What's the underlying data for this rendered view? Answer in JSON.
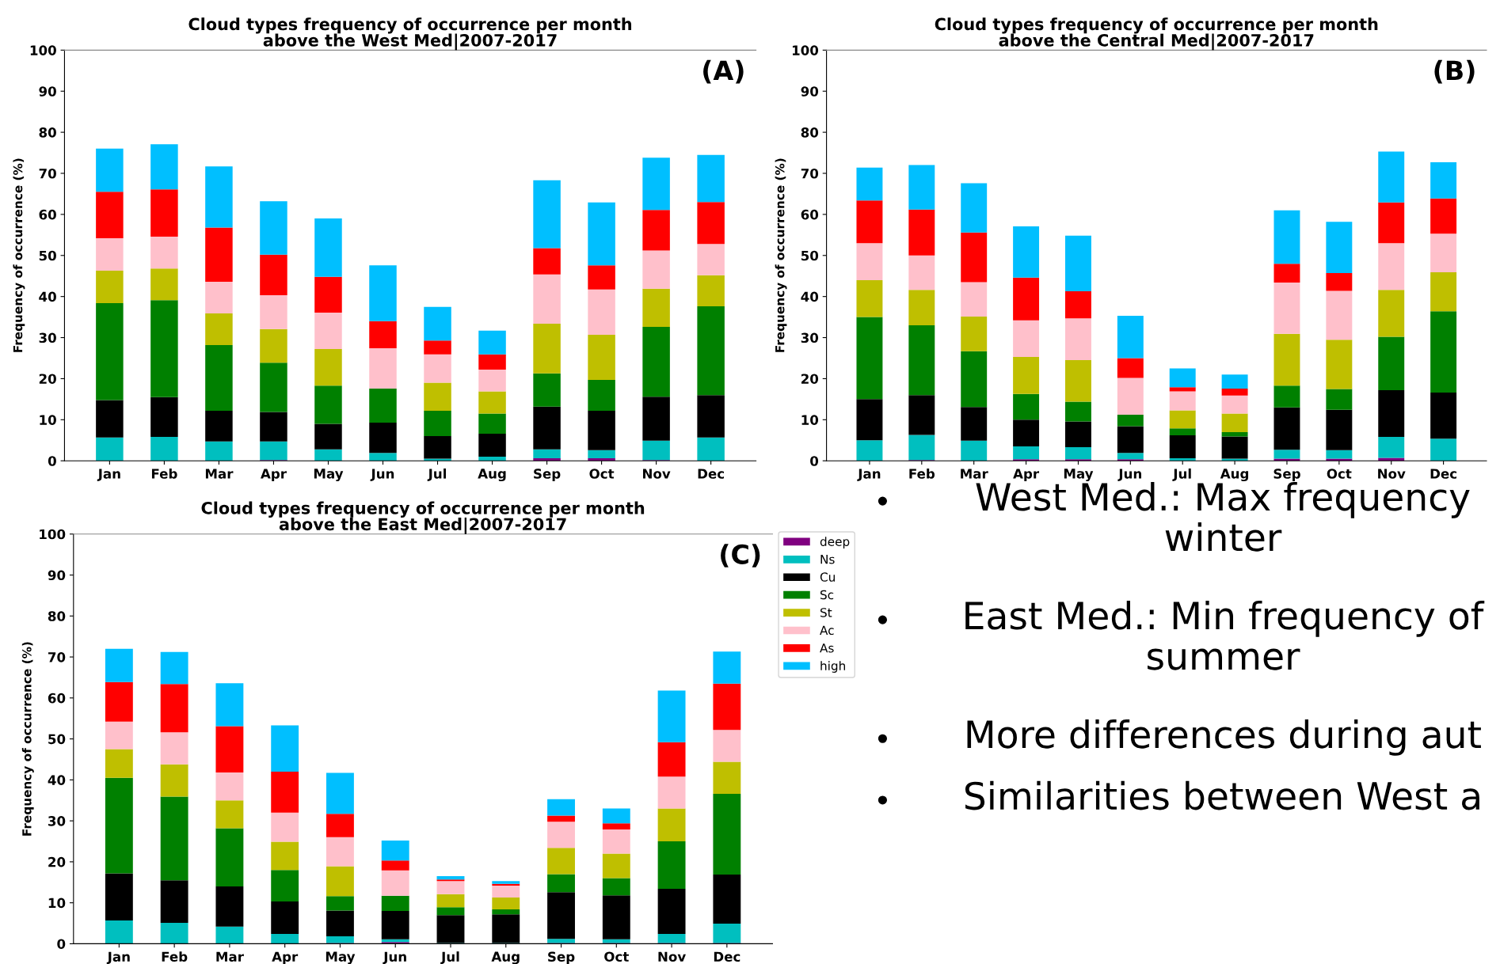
{
  "chart_data": [
    {
      "type": "bar",
      "stacked": true,
      "title": "Cloud types frequency of occurrence per month\nabove the West Med|2007-2017",
      "ylabel": "Frequency of occurrence (%)",
      "annotations": [
        "(A)"
      ],
      "categories": [
        "Jan",
        "Feb",
        "Mar",
        "Apr",
        "May",
        "Jun",
        "Jul",
        "Aug",
        "Sep",
        "Oct",
        "Nov",
        "Dec"
      ],
      "ylim": [
        0,
        100
      ],
      "yticks": [
        0,
        10,
        20,
        30,
        40,
        50,
        60,
        70,
        80,
        90,
        100
      ],
      "series": [
        {
          "color": "#800080",
          "values": [
            0,
            0,
            0,
            0.2,
            0,
            0,
            0,
            0,
            0.6,
            0.6,
            0.2,
            0
          ]
        },
        {
          "color": "#00bfbf",
          "values": [
            5.7,
            5.8,
            4.7,
            4.5,
            2.8,
            1.9,
            0.5,
            1.0,
            2.2,
            2.0,
            4.7,
            5.7
          ]
        },
        {
          "color": "#000000",
          "values": [
            9.1,
            9.7,
            7.5,
            7.2,
            6.2,
            7.4,
            5.5,
            5.6,
            10.4,
            9.6,
            10.7,
            10.3
          ]
        },
        {
          "color": "#008000",
          "values": [
            23.6,
            23.6,
            16.0,
            12.0,
            9.3,
            8.3,
            6.2,
            4.9,
            8.1,
            7.5,
            17.0,
            21.6
          ]
        },
        {
          "color": "#bfbf00",
          "values": [
            7.9,
            7.7,
            7.7,
            8.2,
            8.9,
            0,
            6.8,
            5.4,
            12.1,
            11.0,
            9.3,
            7.6
          ]
        },
        {
          "color": "#ffc0cb",
          "values": [
            7.9,
            7.8,
            7.7,
            8.2,
            8.9,
            9.8,
            6.9,
            5.3,
            12.0,
            11.0,
            9.3,
            7.6
          ]
        },
        {
          "color": "#ff0000",
          "values": [
            11.3,
            11.5,
            13.2,
            9.9,
            8.7,
            6.6,
            3.4,
            3.7,
            6.4,
            5.9,
            9.9,
            10.2
          ]
        },
        {
          "color": "#00bfff",
          "values": [
            10.5,
            11.0,
            14.9,
            13.0,
            14.2,
            13.6,
            8.2,
            5.8,
            16.5,
            15.3,
            12.7,
            11.5
          ]
        }
      ]
    },
    {
      "type": "bar",
      "stacked": true,
      "title": "Cloud types frequency of occurrence per month\nabove the Central Med|2007-2017",
      "ylabel": "Frequency of occurrence (%)",
      "annotations": [
        "(B)"
      ],
      "categories": [
        "Jan",
        "Feb",
        "Mar",
        "Apr",
        "May",
        "Jun",
        "Jul",
        "Aug",
        "Sep",
        "Oct",
        "Nov",
        "Dec"
      ],
      "ylim": [
        0,
        100
      ],
      "yticks": [
        0,
        10,
        20,
        30,
        40,
        50,
        60,
        70,
        80,
        90,
        100
      ],
      "series": [
        {
          "color": "#800080",
          "values": [
            0,
            0.2,
            0,
            0.4,
            0.4,
            0.4,
            0,
            0,
            0.5,
            0.5,
            0.7,
            0
          ]
        },
        {
          "color": "#00bfbf",
          "values": [
            5.0,
            6.1,
            4.9,
            3.1,
            2.9,
            1.5,
            0.6,
            0.5,
            2.2,
            2.1,
            5.1,
            5.4
          ]
        },
        {
          "color": "#000000",
          "values": [
            10.0,
            9.7,
            8.2,
            6.5,
            6.3,
            6.5,
            5.6,
            5.4,
            10.3,
            9.8,
            11.4,
            11.2
          ]
        },
        {
          "color": "#008000",
          "values": [
            20.0,
            17.0,
            13.6,
            6.3,
            4.8,
            2.8,
            1.7,
            1.1,
            5.3,
            5.1,
            13.0,
            19.8
          ]
        },
        {
          "color": "#bfbf00",
          "values": [
            9.0,
            8.6,
            8.4,
            9.0,
            10.1,
            0,
            4.4,
            4.5,
            12.6,
            12.0,
            11.4,
            9.5
          ]
        },
        {
          "color": "#ffc0cb",
          "values": [
            9.0,
            8.4,
            8.4,
            8.9,
            10.2,
            9.0,
            4.6,
            4.4,
            12.5,
            11.9,
            11.4,
            9.4
          ]
        },
        {
          "color": "#ff0000",
          "values": [
            10.4,
            11.2,
            12.1,
            10.4,
            6.6,
            4.8,
            1.0,
            1.7,
            4.6,
            4.3,
            9.9,
            8.6
          ]
        },
        {
          "color": "#00bfff",
          "values": [
            8.0,
            10.8,
            12.0,
            12.5,
            13.5,
            10.3,
            4.6,
            3.4,
            13.0,
            12.5,
            12.4,
            8.8
          ]
        }
      ]
    },
    {
      "type": "bar",
      "stacked": true,
      "title": "Cloud types frequency of occurrence per month\nabove the East Med|2007-2017",
      "ylabel": "Frequency of occurrence (%)",
      "annotations": [
        "(C)"
      ],
      "legend": "right",
      "categories": [
        "Jan",
        "Feb",
        "Mar",
        "Apr",
        "May",
        "Jun",
        "Jul",
        "Aug",
        "Sep",
        "Oct",
        "Nov",
        "Dec"
      ],
      "ylim": [
        0,
        100
      ],
      "yticks": [
        0,
        10,
        20,
        30,
        40,
        50,
        60,
        70,
        80,
        90,
        100
      ],
      "series": [
        {
          "name": "deep",
          "color": "#800080",
          "values": [
            0,
            0,
            0,
            0,
            0.2,
            0.4,
            0,
            0,
            0.2,
            0.2,
            0.2,
            0.2
          ]
        },
        {
          "name": "Ns",
          "color": "#00bfbf",
          "values": [
            5.7,
            5.1,
            4.2,
            2.4,
            1.6,
            0.7,
            0.2,
            0.2,
            1.0,
            0.9,
            2.2,
            4.7
          ]
        },
        {
          "name": "Cu",
          "color": "#000000",
          "values": [
            11.5,
            10.4,
            9.8,
            7.9,
            6.3,
            6.9,
            6.8,
            7.0,
            11.4,
            10.7,
            11.0,
            12.0
          ]
        },
        {
          "name": "Sc",
          "color": "#008000",
          "values": [
            23.3,
            20.4,
            14.2,
            7.7,
            3.5,
            3.7,
            1.9,
            1.2,
            4.4,
            4.2,
            11.6,
            19.7
          ]
        },
        {
          "name": "St",
          "color": "#bfbf00",
          "values": [
            7.0,
            7.9,
            6.8,
            6.9,
            7.3,
            0,
            3.2,
            2.9,
            6.4,
            6.0,
            8.0,
            7.8
          ]
        },
        {
          "name": "Ac",
          "color": "#ffc0cb",
          "values": [
            6.7,
            7.8,
            6.8,
            7.1,
            7.1,
            6.2,
            3.2,
            2.9,
            6.4,
            5.9,
            7.8,
            7.8
          ]
        },
        {
          "name": "As",
          "color": "#ff0000",
          "values": [
            9.7,
            11.8,
            11.3,
            10.0,
            5.7,
            2.4,
            0.4,
            0.4,
            1.5,
            1.5,
            8.4,
            11.3
          ]
        },
        {
          "name": "high",
          "color": "#00bfff",
          "values": [
            8.1,
            7.8,
            10.5,
            11.3,
            10.0,
            4.9,
            0.8,
            0.7,
            4.0,
            3.6,
            12.6,
            7.8
          ]
        }
      ]
    },
    {
      "type": "other",
      "annotations": [
        "West Med.: Max frequency\nwinter",
        "East Med.: Min frequency of\nsummer",
        "More differences during aut",
        "Similarities between West a"
      ]
    }
  ]
}
